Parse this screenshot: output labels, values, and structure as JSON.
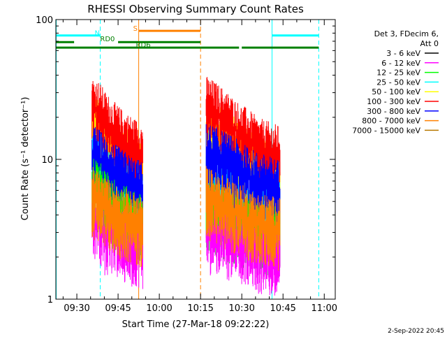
{
  "chart_data": {
    "type": "line",
    "title": "RHESSI Observing Summary Count Rates",
    "xlabel": "Start Time (27-Mar-18 09:22:22)",
    "ylabel": "Count Rate (s⁻¹ detector⁻¹)",
    "yscale": "log",
    "ylim": [
      1,
      100
    ],
    "xlim_min": [
      22.37,
      124.0
    ],
    "y_ticks": [
      {
        "value": 1,
        "label": "1"
      },
      {
        "value": 10,
        "label": "10"
      },
      {
        "value": 100,
        "label": "100"
      }
    ],
    "x_ticks": [
      {
        "value": 30,
        "label": "09:30"
      },
      {
        "value": 45,
        "label": "09:45"
      },
      {
        "value": 60,
        "label": "10:00"
      },
      {
        "value": 75,
        "label": "10:15"
      },
      {
        "value": 90,
        "label": "10:30"
      },
      {
        "value": 105,
        "label": "10:45"
      },
      {
        "value": 120,
        "label": "11:00"
      }
    ],
    "legend_header": [
      "Det 3, FDecim 6,",
      "Att 0"
    ],
    "legend_placement": "right",
    "series": [
      {
        "name": "3 - 6 keV",
        "color": "#000000",
        "points": []
      },
      {
        "name": "6 - 12 keV",
        "color": "#ff00ff",
        "points": [
          [
            35.5,
            4
          ],
          [
            38,
            3.5
          ],
          [
            40,
            3
          ],
          [
            43,
            3
          ],
          [
            47,
            2.6
          ],
          [
            51,
            2.4
          ],
          [
            54,
            2.4
          ],
          [
            77,
            3
          ],
          [
            80,
            3
          ],
          [
            84,
            2.8
          ],
          [
            88,
            2.6
          ],
          [
            92,
            2.4
          ],
          [
            96,
            2.2
          ],
          [
            104,
            2
          ]
        ]
      },
      {
        "name": "12 - 25 keV",
        "color": "#00ff00",
        "points": [
          [
            35.5,
            6.5
          ],
          [
            38,
            6
          ],
          [
            40,
            5.2
          ],
          [
            43,
            4.5
          ],
          [
            47,
            4
          ],
          [
            51,
            3.6
          ],
          [
            54,
            3.4
          ],
          [
            77,
            4.5
          ],
          [
            80,
            4.2
          ],
          [
            84,
            3.8
          ],
          [
            88,
            3.4
          ],
          [
            92,
            3.2
          ],
          [
            96,
            3
          ],
          [
            104,
            2.8
          ]
        ]
      },
      {
        "name": "25 - 50 keV",
        "color": "#00ffff",
        "points": [
          [
            35.5,
            9
          ],
          [
            38,
            8.5
          ],
          [
            40,
            7.5
          ],
          [
            43,
            6.5
          ],
          [
            47,
            5.8
          ],
          [
            51,
            5.2
          ],
          [
            54,
            5
          ],
          [
            77,
            7
          ],
          [
            80,
            6.5
          ],
          [
            84,
            6
          ],
          [
            88,
            5.5
          ],
          [
            92,
            5
          ],
          [
            96,
            4.6
          ],
          [
            104,
            4.2
          ]
        ]
      },
      {
        "name": "50 - 100 keV",
        "color": "#ffff00",
        "points": [
          [
            35.5,
            18
          ],
          [
            38,
            16
          ],
          [
            40,
            14
          ],
          [
            43,
            12
          ],
          [
            47,
            10.5
          ],
          [
            51,
            9
          ],
          [
            54,
            8.5
          ],
          [
            77,
            18
          ],
          [
            80,
            16
          ],
          [
            84,
            14
          ],
          [
            88,
            12
          ],
          [
            92,
            10.5
          ],
          [
            96,
            9
          ],
          [
            104,
            8
          ]
        ]
      },
      {
        "name": "100 - 300 keV",
        "color": "#ff0000",
        "points": [
          [
            35.5,
            24
          ],
          [
            38,
            22
          ],
          [
            40,
            19
          ],
          [
            43,
            16
          ],
          [
            47,
            13.5
          ],
          [
            51,
            12
          ],
          [
            54,
            11
          ],
          [
            77,
            24
          ],
          [
            80,
            22
          ],
          [
            84,
            19
          ],
          [
            88,
            16
          ],
          [
            92,
            14
          ],
          [
            96,
            12
          ],
          [
            104,
            10.5
          ]
        ]
      },
      {
        "name": "300 - 800 keV",
        "color": "#0000ff",
        "points": [
          [
            35.5,
            11
          ],
          [
            38,
            10
          ],
          [
            40,
            9
          ],
          [
            43,
            8
          ],
          [
            47,
            7
          ],
          [
            51,
            6.2
          ],
          [
            54,
            5.8
          ],
          [
            77,
            11
          ],
          [
            80,
            10.5
          ],
          [
            84,
            9.5
          ],
          [
            88,
            8.5
          ],
          [
            92,
            7.5
          ],
          [
            96,
            6.8
          ],
          [
            104,
            6
          ]
        ]
      },
      {
        "name": "800 - 7000 keV",
        "color": "#ff8000",
        "points": [
          [
            35.5,
            5.5
          ],
          [
            38,
            5
          ],
          [
            40,
            4.6
          ],
          [
            43,
            4.2
          ],
          [
            47,
            3.8
          ],
          [
            51,
            3.5
          ],
          [
            54,
            3.3
          ],
          [
            77,
            5.5
          ],
          [
            80,
            5
          ],
          [
            84,
            4.6
          ],
          [
            88,
            4.2
          ],
          [
            92,
            3.8
          ],
          [
            96,
            3.5
          ],
          [
            104,
            3.2
          ]
        ]
      },
      {
        "name": "7000 - 15000 keV",
        "color": "#b87800",
        "points": []
      }
    ],
    "flag_bars": [
      {
        "label": "N",
        "color": "#00ffff",
        "segments": [
          [
            22.37,
            38.5
          ],
          [
            101,
            118
          ]
        ],
        "level": 77
      },
      {
        "label": "S",
        "color": "#ff8000",
        "segments": [
          [
            52.5,
            75
          ]
        ],
        "level": 83
      },
      {
        "label": "RD0",
        "color": "#008000",
        "segments": [
          [
            22.37,
            29
          ],
          [
            45,
            75
          ]
        ],
        "level": 69
      },
      {
        "label": "RD6",
        "color": "#008000",
        "segments": [
          [
            22.37,
            75
          ],
          [
            75,
            89
          ],
          [
            90,
            118
          ]
        ],
        "level": 63
      }
    ],
    "vertical_markers": [
      {
        "x": 22.5,
        "color": "#00ffff",
        "style": "solid"
      },
      {
        "x": 38.5,
        "color": "#00ffff",
        "style": "dashed"
      },
      {
        "x": 52.5,
        "color": "#ff8000",
        "style": "solid"
      },
      {
        "x": 75,
        "color": "#ff8000",
        "style": "dashed"
      },
      {
        "x": 101,
        "color": "#00ffff",
        "style": "solid"
      },
      {
        "x": 118,
        "color": "#00ffff",
        "style": "dashed"
      }
    ],
    "data_gaps": [
      [
        22.37,
        35
      ],
      [
        54.5,
        76.5
      ],
      [
        106,
        124
      ]
    ],
    "footer_date": "2-Sep-2022 20:45"
  }
}
